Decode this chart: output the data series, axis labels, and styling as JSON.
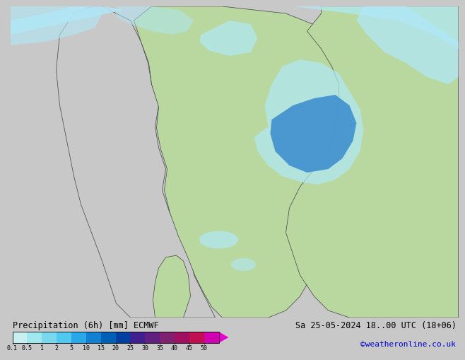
{
  "title_left": "Precipitation (6h) [mm] ECMWF",
  "title_right": "Sa 25-05-2024 18..00 UTC (18+06)",
  "credit": "©weatheronline.co.uk",
  "colorbar_values": [
    0.1,
    0.5,
    1,
    2,
    5,
    10,
    15,
    20,
    25,
    30,
    35,
    40,
    45,
    50
  ],
  "colorbar_colors": [
    "#c8f0f0",
    "#a0e8f0",
    "#78d8f0",
    "#50c8f0",
    "#28a8e8",
    "#1080d0",
    "#0060b8",
    "#0040a0",
    "#402090",
    "#602080",
    "#802070",
    "#a01060",
    "#c01050",
    "#d000b0",
    "#e800d0"
  ],
  "bg_gray": "#c8c8c8",
  "land_green": "#b8d8a0",
  "sea_gray": "#c0c0c0",
  "ocean_light": "#d8d8d8",
  "precip_light_cyan": "#b0e8f8",
  "precip_mid_blue": "#4090d0",
  "precip_dark_blue": "#1840a0",
  "precip_pink": "#c080c0",
  "bottom_bg": "#ffffff",
  "text_color": "#000000",
  "credit_color": "#0000cc",
  "border_color": "#404040"
}
